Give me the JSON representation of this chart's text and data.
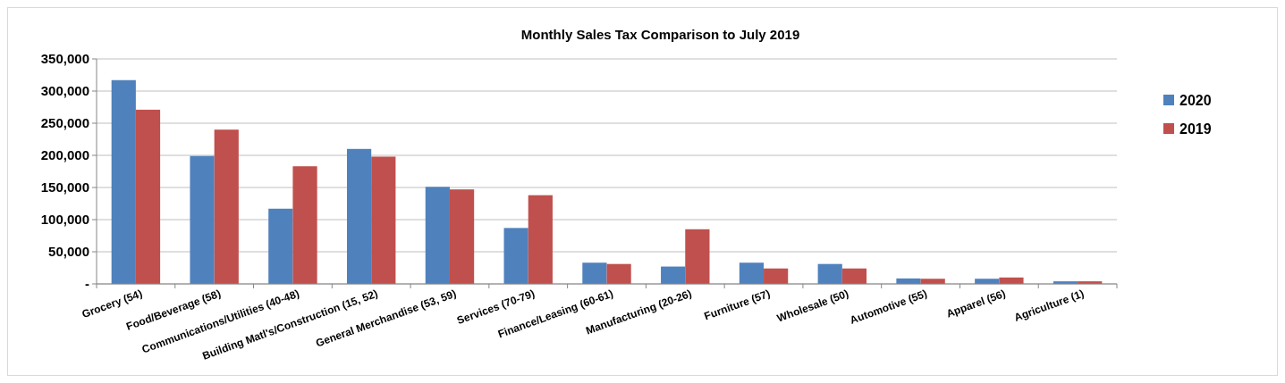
{
  "chart_data": {
    "type": "bar",
    "title": "Monthly Sales Tax Comparison to July 2019",
    "categories": [
      "Grocery (54)",
      "Food/Beverage (58)",
      "Communications/Utilities (40-48)",
      "Building Matl's/Construction (15, 52)",
      "General Merchandise (53, 59)",
      "Services (70-79)",
      "Finance/Leasing (60-61)",
      "Manufacturing (20-26)",
      "Furniture (57)",
      "Wholesale (50)",
      "Automotive (55)",
      "Apparel (56)",
      "Agriculture (1)"
    ],
    "series": [
      {
        "name": "2020",
        "color": "#4f81bd",
        "values": [
          317000,
          199000,
          117000,
          210000,
          151000,
          87000,
          33000,
          27000,
          33000,
          31000,
          8500,
          8000,
          4000
        ]
      },
      {
        "name": "2019",
        "color": "#c0504d",
        "values": [
          271000,
          240000,
          183000,
          198000,
          147000,
          138000,
          31000,
          85000,
          24000,
          24000,
          8000,
          10000,
          4000
        ]
      }
    ],
    "ylim": [
      0,
      350000
    ],
    "yticks": [
      {
        "value": 0,
        "label": "-"
      },
      {
        "value": 50000,
        "label": "50,000"
      },
      {
        "value": 100000,
        "label": "100,000"
      },
      {
        "value": 150000,
        "label": "150,000"
      },
      {
        "value": 200000,
        "label": "200,000"
      },
      {
        "value": 250000,
        "label": "250,000"
      },
      {
        "value": 300000,
        "label": "300,000"
      },
      {
        "value": 350000,
        "label": "350,000"
      }
    ],
    "grid": "y",
    "legend": "right"
  }
}
